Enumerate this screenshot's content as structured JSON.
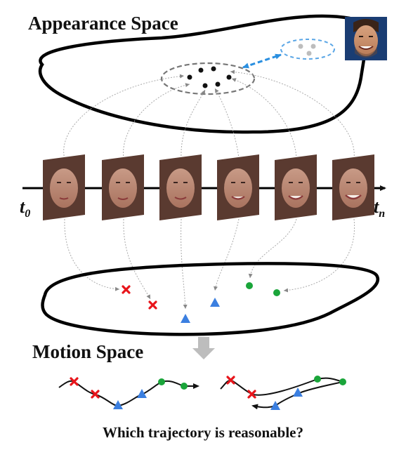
{
  "titles": {
    "appearance": "Appearance Space",
    "motion": "Motion Space",
    "question": "Which trajectory is reasonable?"
  },
  "timeline": {
    "start_label": "t",
    "start_sub": "0",
    "end_label": "t",
    "end_sub": "n",
    "frame_count": 6
  },
  "colors": {
    "red_cross": "#e8151b",
    "blue_triangle": "#3b7fe0",
    "green_dot": "#1aa53a",
    "dashed_link": "#2a8fe0",
    "cluster_ring": "#777777",
    "identity_ring": "#5aa6e6",
    "guide_arrow": "#aaaaaa"
  },
  "icons": {
    "identity_face": "smiling-man-face-thumbnail",
    "frames": "woman-face-frame-thumbnail"
  }
}
